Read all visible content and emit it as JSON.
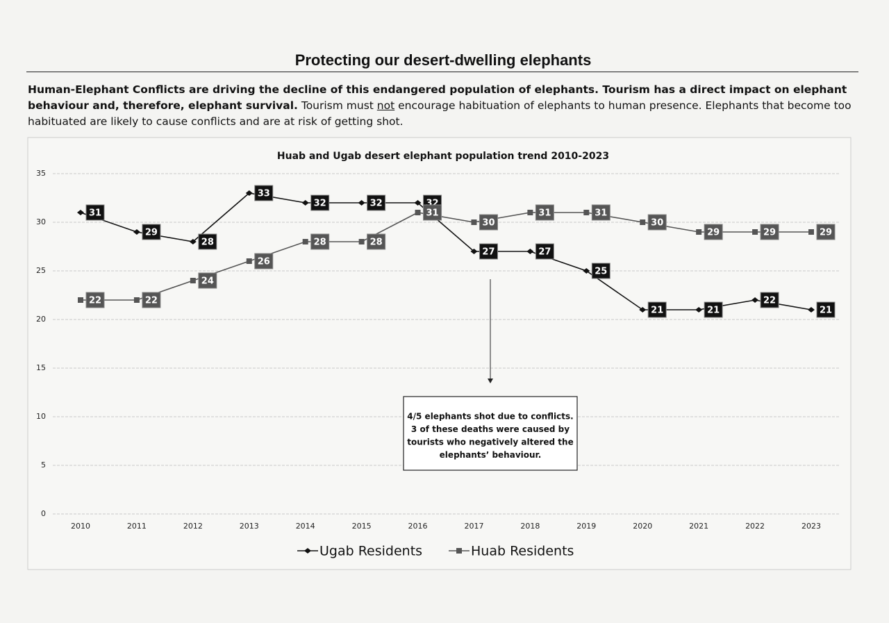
{
  "header": {
    "title": "Protecting our desert-dwelling elephants"
  },
  "paragraph": {
    "emphasis": "Human-Elephant Conflicts are driving the decline of this endangered population of elephants. Tourism has a direct impact on elephant behaviour and, therefore, elephant survival.",
    "text_1": "Tourism must",
    "underlined": "not",
    "text_2": "encourage habituation of elephants to human presence. Elephants that become too habituated are likely to cause conflicts and are at risk of getting shot."
  },
  "chart_data": {
    "type": "line",
    "title": "Huab and Ugab desert elephant population trend 2010-2023",
    "categories": [
      "2010",
      "2011",
      "2012",
      "2013",
      "2014",
      "2015",
      "2016",
      "2017",
      "2018",
      "2019",
      "2020",
      "2021",
      "2022",
      "2023"
    ],
    "series": [
      {
        "name": "Ugab Residents",
        "color": "#111111",
        "marker": "diamond",
        "values": [
          31,
          29,
          28,
          33,
          32,
          32,
          32,
          27,
          27,
          25,
          21,
          21,
          22,
          21
        ]
      },
      {
        "name": "Huab Residents",
        "color": "#555555",
        "marker": "square",
        "values": [
          22,
          22,
          24,
          26,
          28,
          28,
          31,
          30,
          31,
          31,
          30,
          29,
          29,
          29
        ]
      }
    ],
    "ylim": [
      0,
      35
    ],
    "yticks": [
      0,
      5,
      10,
      15,
      20,
      25,
      30,
      35
    ],
    "grid": true,
    "legend": "bottom",
    "annotation": [
      "4/5 elephants shot due to conflicts.",
      "3 of these deaths were caused by",
      "tourists who negatively altered the",
      "elephants’ behaviour."
    ]
  }
}
